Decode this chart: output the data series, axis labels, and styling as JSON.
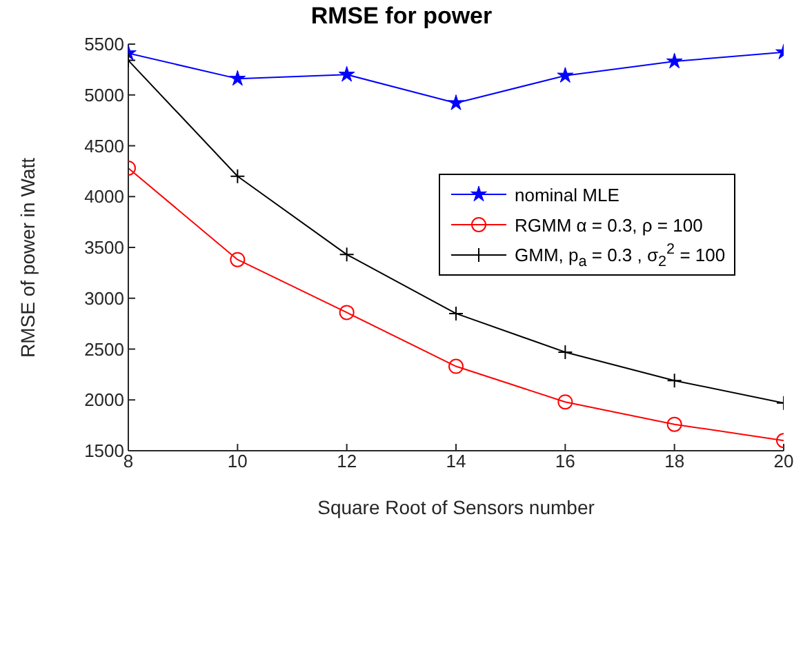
{
  "chart_data": {
    "type": "line",
    "title": "RMSE for power",
    "xlabel": "Square Root of Sensors number",
    "ylabel": "RMSE of power in Watt",
    "x": [
      8,
      10,
      12,
      14,
      16,
      18,
      20
    ],
    "series": [
      {
        "name": "nominal MLE",
        "color": "#0000ff",
        "marker": "star",
        "values": [
          5410,
          5160,
          5200,
          4920,
          5190,
          5330,
          5420
        ]
      },
      {
        "name": "RGMM α = 0.3,  ρ = 100",
        "color": "#ff0000",
        "marker": "circle",
        "values": [
          4280,
          3380,
          2860,
          2330,
          1980,
          1760,
          1600
        ]
      },
      {
        "name": "GMM, p$_{a}$ = 0.3 , σ$_{2}$$^{2}$ = 100",
        "color": "#000000",
        "marker": "cross",
        "values": [
          5340,
          4200,
          3430,
          2850,
          2470,
          2190,
          1970
        ]
      }
    ],
    "xlim": [
      8,
      20
    ],
    "xticks": [
      8,
      10,
      12,
      14,
      16,
      18,
      20
    ],
    "ylim": [
      1500,
      5500
    ],
    "yticks": [
      1500,
      2000,
      2500,
      3000,
      3500,
      4000,
      4500,
      5000,
      5500
    ],
    "grid": false,
    "legend": "top right",
    "line_style": "solid"
  }
}
